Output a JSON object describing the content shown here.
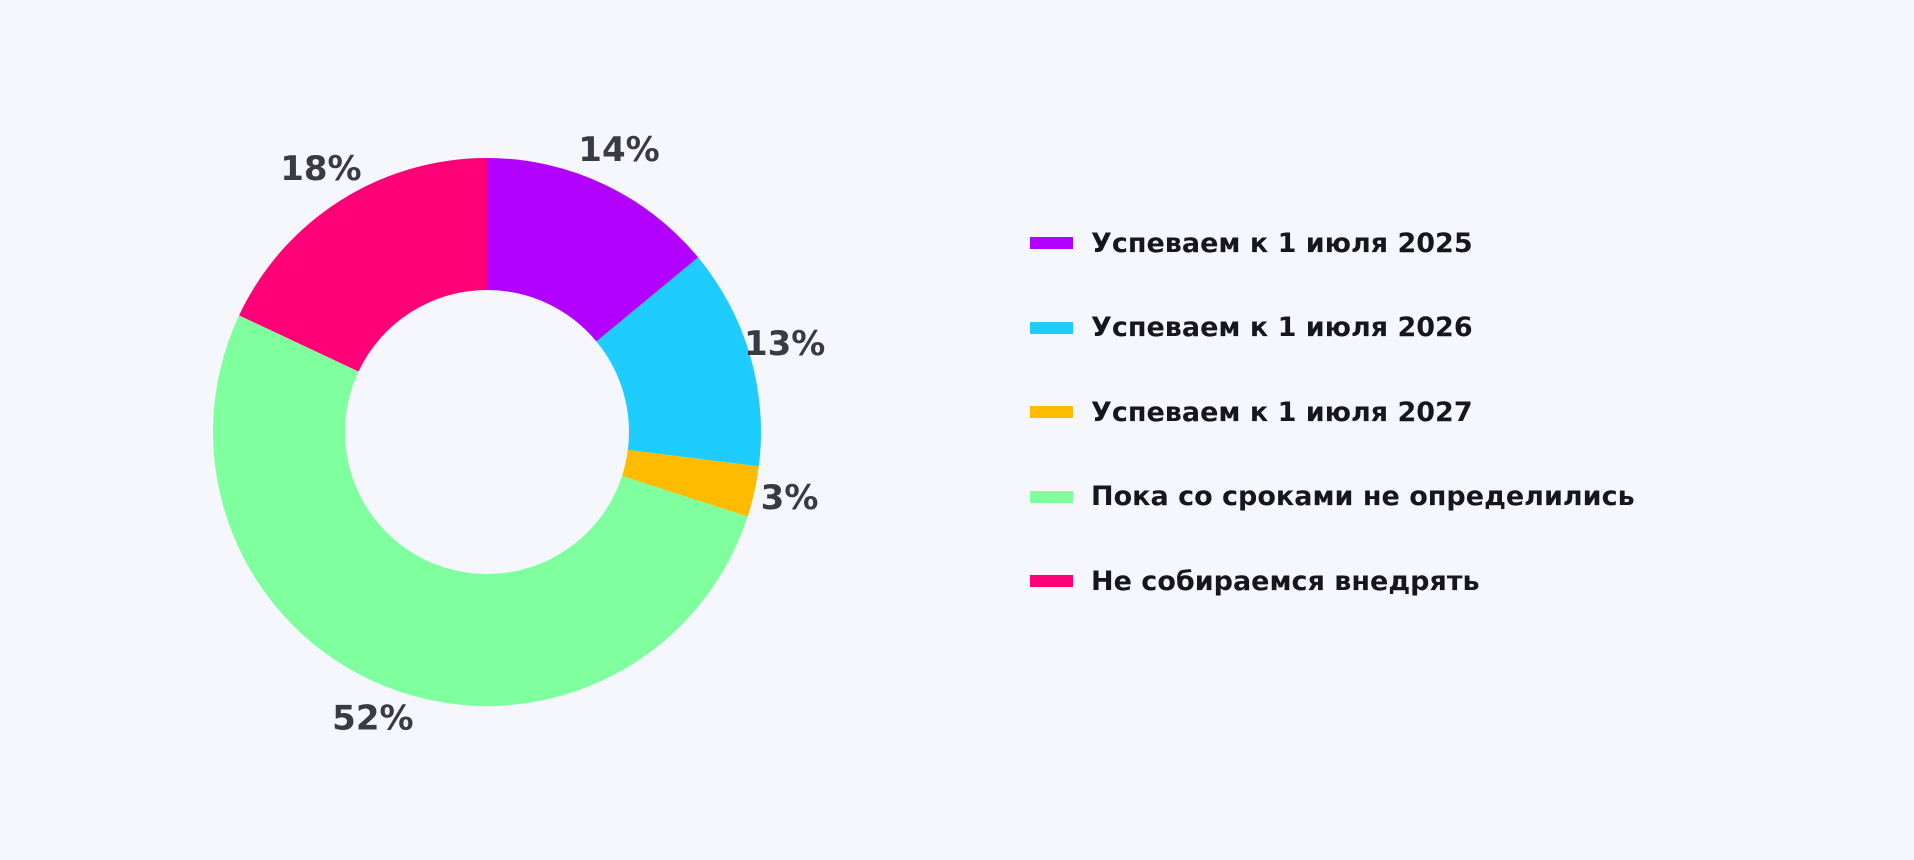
{
  "chart_data": {
    "type": "pie",
    "variant": "donut",
    "title": "",
    "legend_position": "right",
    "slices": [
      {
        "label": "Успеваем к 1 июля 2025",
        "value": 14,
        "display": "14%",
        "color": "#b200ff"
      },
      {
        "label": "Успеваем к 1 июля 2026",
        "value": 13,
        "display": "13%",
        "color": "#1ecdfd"
      },
      {
        "label": "Успеваем к 1 июля 2027",
        "value": 3,
        "display": "3%",
        "color": "#ffbb00"
      },
      {
        "label": "Пока со сроками не определились",
        "value": 52,
        "display": "52%",
        "color": "#80ff9f"
      },
      {
        "label": "Не собираемся внедрять",
        "value": 18,
        "display": "18%",
        "color": "#ff0077"
      }
    ]
  }
}
